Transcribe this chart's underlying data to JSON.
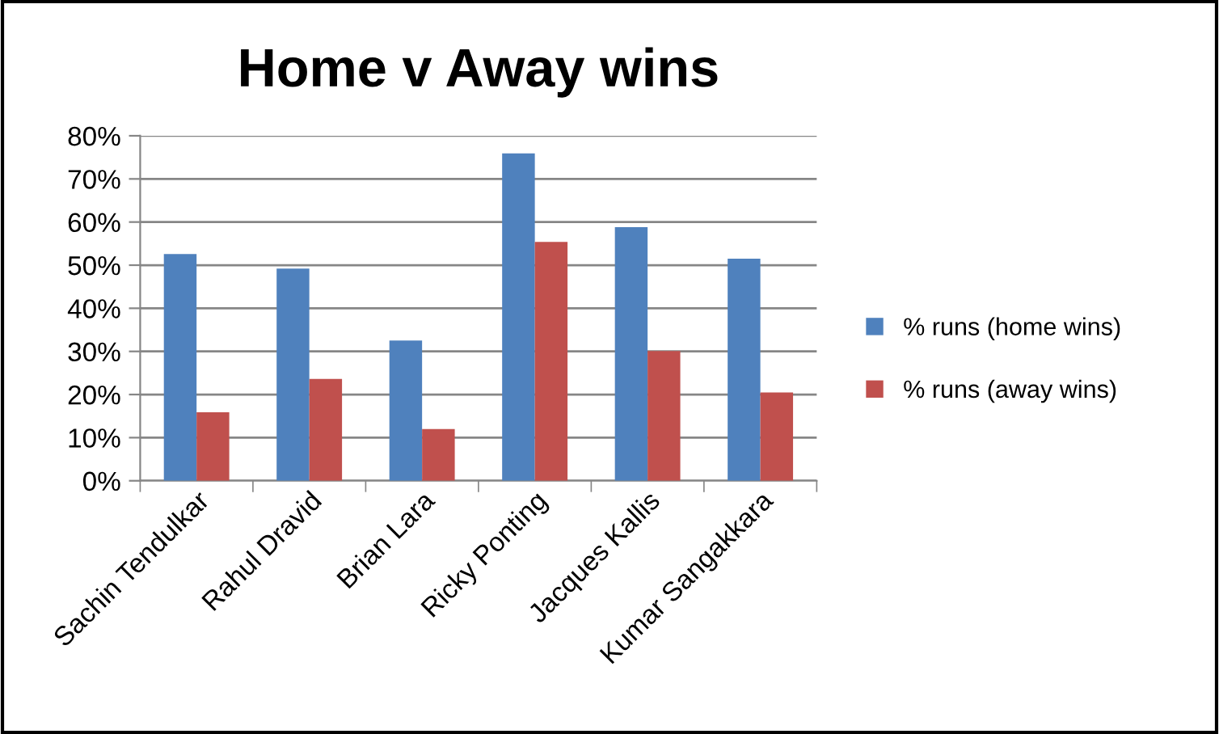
{
  "chart_data": {
    "type": "bar",
    "title": "Home v Away wins",
    "categories": [
      "Sachin Tendulkar",
      "Rahul Dravid",
      "Brian Lara",
      "Ricky Ponting",
      "Jacques Kallis",
      "Kumar Sangakkara"
    ],
    "series": [
      {
        "name": "% runs (home wins)",
        "color": "#4f81bd",
        "values": [
          52.6,
          49.2,
          32.5,
          75.9,
          58.8,
          51.5
        ]
      },
      {
        "name": "% runs (away wins)",
        "color": "#c0504d",
        "values": [
          15.9,
          23.6,
          12.0,
          55.4,
          30.1,
          20.5
        ]
      }
    ],
    "ylim": [
      0,
      80
    ],
    "yticks": [
      {
        "value": 0,
        "label": "0%"
      },
      {
        "value": 10,
        "label": "10%"
      },
      {
        "value": 20,
        "label": "20%"
      },
      {
        "value": 30,
        "label": "30%"
      },
      {
        "value": 40,
        "label": "40%"
      },
      {
        "value": 50,
        "label": "50%"
      },
      {
        "value": 60,
        "label": "60%"
      },
      {
        "value": 70,
        "label": "70%"
      },
      {
        "value": 80,
        "label": "80%"
      }
    ],
    "grid": "y",
    "legend": "right"
  }
}
